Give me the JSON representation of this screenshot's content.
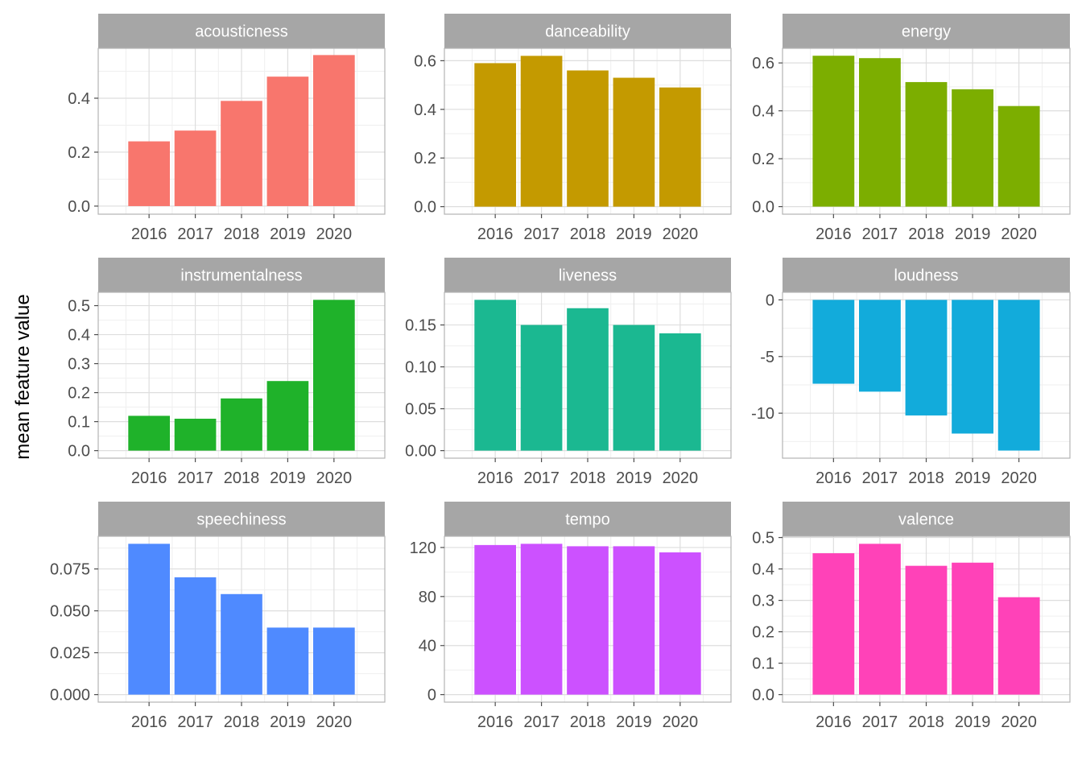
{
  "chart_data": {
    "type": "bar",
    "layout": "facet-grid-3x3",
    "ylabel": "mean feature value",
    "xlabel": "",
    "categories": [
      "2016",
      "2017",
      "2018",
      "2019",
      "2020"
    ],
    "grid": true,
    "legend": "none",
    "panels": [
      {
        "name": "acousticness",
        "color": "#F8766D",
        "values": [
          0.24,
          0.28,
          0.39,
          0.48,
          0.56
        ],
        "ylim": [
          -0.03,
          0.585
        ],
        "yticks": [
          0.0,
          0.2,
          0.4
        ],
        "tick_labels": [
          "0.0",
          "0.2",
          "0.4"
        ]
      },
      {
        "name": "danceability",
        "color": "#C49A00",
        "values": [
          0.59,
          0.62,
          0.56,
          0.53,
          0.49
        ],
        "ylim": [
          -0.031,
          0.651
        ],
        "yticks": [
          0.0,
          0.2,
          0.4,
          0.6
        ],
        "tick_labels": [
          "0.0",
          "0.2",
          "0.4",
          "0.6"
        ]
      },
      {
        "name": "energy",
        "color": "#7CAE00",
        "values": [
          0.63,
          0.62,
          0.52,
          0.49,
          0.42
        ],
        "ylim": [
          -0.0316,
          0.661
        ],
        "yticks": [
          0.0,
          0.2,
          0.4,
          0.6
        ],
        "tick_labels": [
          "0.0",
          "0.2",
          "0.4",
          "0.6"
        ]
      },
      {
        "name": "instrumentalness",
        "color": "#1FB22A",
        "values": [
          0.12,
          0.11,
          0.18,
          0.24,
          0.52
        ],
        "ylim": [
          -0.026,
          0.546
        ],
        "yticks": [
          0.0,
          0.1,
          0.2,
          0.3,
          0.4,
          0.5
        ],
        "tick_labels": [
          "0.0",
          "0.1",
          "0.2",
          "0.3",
          "0.4",
          "0.5"
        ]
      },
      {
        "name": "liveness",
        "color": "#1BB891",
        "values": [
          0.18,
          0.15,
          0.17,
          0.15,
          0.14
        ],
        "ylim": [
          -0.009,
          0.189
        ],
        "yticks": [
          0.0,
          0.05,
          0.1,
          0.15
        ],
        "tick_labels": [
          "0.00",
          "0.05",
          "0.10",
          "0.15"
        ]
      },
      {
        "name": "loudness",
        "color": "#12ABDB",
        "values": [
          -7.4,
          -8.1,
          -10.2,
          -11.8,
          -13.3
        ],
        "ylim": [
          -13.97,
          0.67
        ],
        "yticks": [
          -10,
          -5,
          0
        ],
        "tick_labels": [
          "-10",
          "-5",
          "0"
        ]
      },
      {
        "name": "speechiness",
        "color": "#4F8AFF",
        "values": [
          0.09,
          0.07,
          0.06,
          0.04,
          0.04
        ],
        "ylim": [
          -0.0045,
          0.0945
        ],
        "yticks": [
          0.0,
          0.025,
          0.05,
          0.075
        ],
        "tick_labels": [
          "0.000",
          "0.025",
          "0.050",
          "0.075"
        ]
      },
      {
        "name": "tempo",
        "color": "#CC51FF",
        "values": [
          122,
          123,
          121,
          121,
          116
        ],
        "ylim": [
          -6.15,
          129.15
        ],
        "yticks": [
          0,
          40,
          80,
          120
        ],
        "tick_labels": [
          "0",
          "40",
          "80",
          "120"
        ]
      },
      {
        "name": "valence",
        "color": "#FF42B8",
        "values": [
          0.45,
          0.48,
          0.41,
          0.42,
          0.31
        ],
        "ylim": [
          -0.024,
          0.504
        ],
        "yticks": [
          0.0,
          0.1,
          0.2,
          0.3,
          0.4,
          0.5
        ],
        "tick_labels": [
          "0.0",
          "0.1",
          "0.2",
          "0.3",
          "0.4",
          "0.5"
        ]
      }
    ]
  }
}
